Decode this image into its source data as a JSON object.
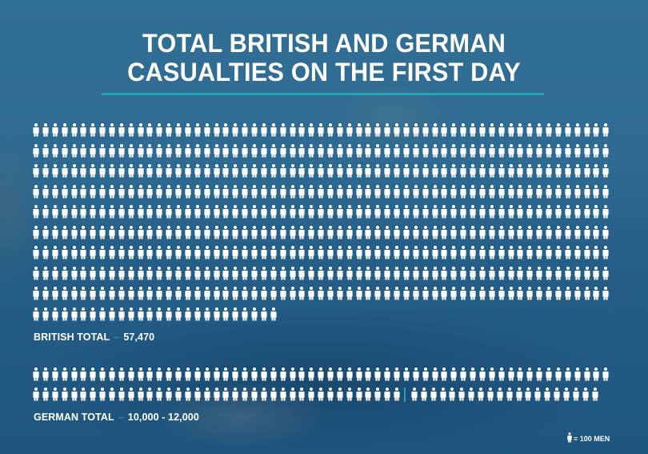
{
  "title": {
    "line1": "TOTAL BRITISH AND GERMAN",
    "line2": "CASUALTIES ON THE FIRST DAY"
  },
  "colors": {
    "background": "#2c6890",
    "accent": "#1fa8b4",
    "icon": "#ffffff"
  },
  "icon": "person-icon",
  "british": {
    "label": "BRITISH TOTAL",
    "separator": "–",
    "value": "57,470",
    "icons": 575,
    "icons_per_row": 61
  },
  "german": {
    "label": "GERMAN TOTAL",
    "separator": "–",
    "value": "10,000 - 12,000",
    "icons": 120,
    "icons_per_row": 61,
    "divider_after_icon": 100
  },
  "legend": {
    "text": "= 100 MEN"
  },
  "chart_data": {
    "type": "pictograph",
    "title": "TOTAL BRITISH AND GERMAN CASUALTIES ON THE FIRST DAY",
    "unit": "1 icon = 100 men",
    "categories": [
      "British",
      "German"
    ],
    "series": [
      {
        "name": "British total",
        "values": [
          57470
        ],
        "icons": 575,
        "label": "57,470"
      },
      {
        "name": "German total",
        "range": [
          10000,
          12000
        ],
        "icons_low": 100,
        "icons_high": 120,
        "label": "10,000 - 12,000"
      }
    ],
    "icons_per_row": 61,
    "legend": "= 100 MEN"
  }
}
